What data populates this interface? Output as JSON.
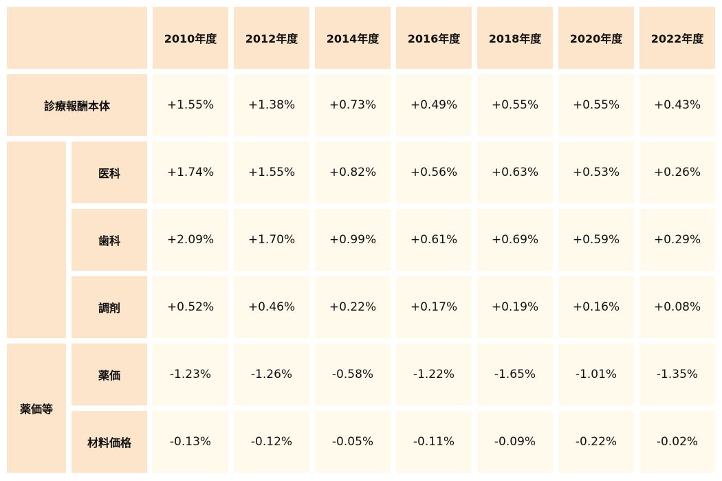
{
  "chart_data": {
    "type": "table",
    "columns": [
      "2010年度",
      "2012年度",
      "2014年度",
      "2016年度",
      "2018年度",
      "2020年度",
      "2022年度"
    ],
    "row_groups": [
      {
        "label": "",
        "rows": [
          {
            "label": "診療報酬本体",
            "values": [
              "+1.55%",
              "+1.38%",
              "+0.73%",
              "+0.49%",
              "+0.55%",
              "+0.55%",
              "+0.43%"
            ]
          }
        ]
      },
      {
        "label": "",
        "rows": [
          {
            "label": "医科",
            "values": [
              "+1.74%",
              "+1.55%",
              "+0.82%",
              "+0.56%",
              "+0.63%",
              "+0.53%",
              "+0.26%"
            ]
          },
          {
            "label": "歯科",
            "values": [
              "+2.09%",
              "+1.70%",
              "+0.99%",
              "+0.61%",
              "+0.69%",
              "+0.59%",
              "+0.29%"
            ]
          },
          {
            "label": "調剤",
            "values": [
              "+0.52%",
              "+0.46%",
              "+0.22%",
              "+0.17%",
              "+0.19%",
              "+0.16%",
              "+0.08%"
            ]
          }
        ]
      },
      {
        "label": "薬価等",
        "rows": [
          {
            "label": "薬価",
            "values": [
              "-1.23%",
              "-1.26%",
              "-0.58%",
              "-1.22%",
              "-1.65%",
              "-1.01%",
              "-1.35%"
            ]
          },
          {
            "label": "材料価格",
            "values": [
              "-0.13%",
              "-0.12%",
              "-0.05%",
              "-0.11%",
              "-0.09%",
              "-0.22%",
              "-0.02%"
            ]
          }
        ]
      }
    ]
  },
  "colors": {
    "header_bg": "#fde5cc",
    "cell_bg": "#fffaeb",
    "border": "#ffffff",
    "text": "#111111"
  }
}
